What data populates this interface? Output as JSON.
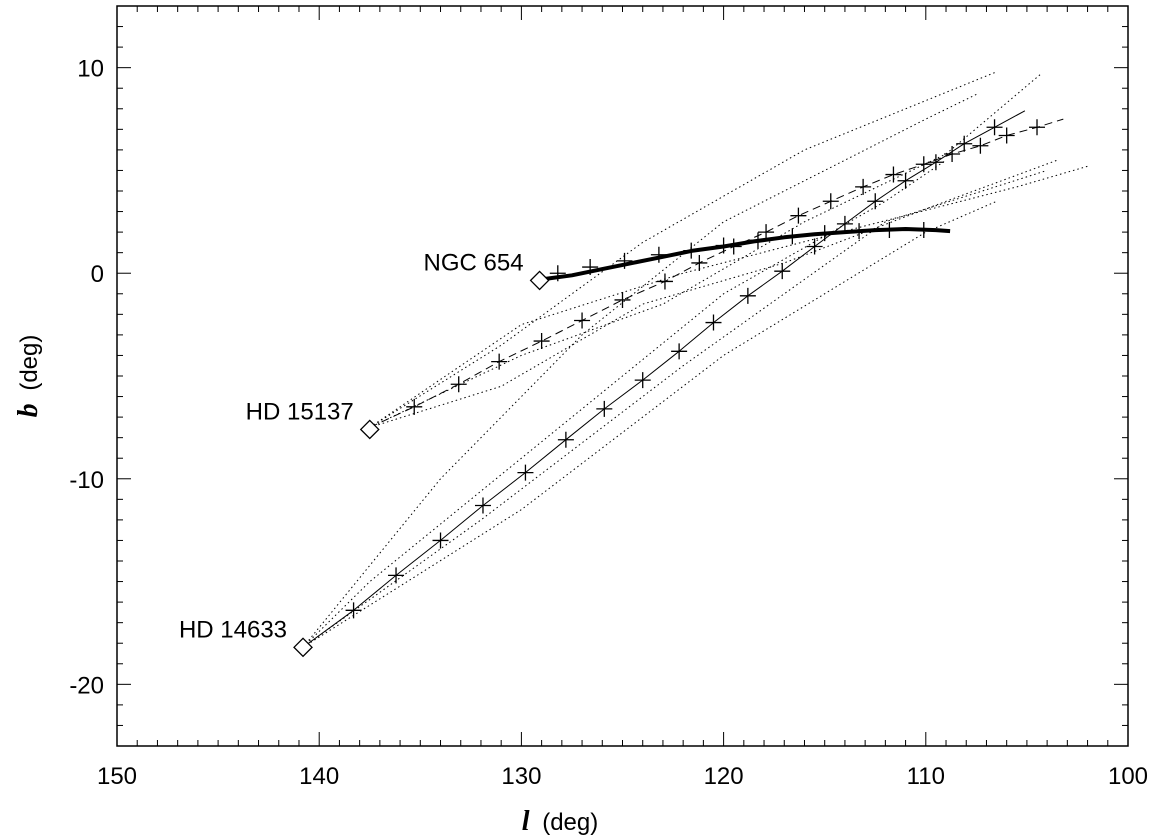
{
  "chart_data": {
    "type": "line",
    "xlabel": {
      "symbol": "l",
      "unit": "(deg)"
    },
    "ylabel": {
      "symbol": "b",
      "unit": "(deg)"
    },
    "xlim": [
      150,
      100
    ],
    "ylim": [
      -23,
      13
    ],
    "x_ticks": [
      150,
      140,
      130,
      120,
      110,
      100
    ],
    "y_ticks": [
      10,
      0,
      -10,
      -20
    ],
    "x_tick_labels": [
      "150",
      "140",
      "130",
      "120",
      "110",
      "100"
    ],
    "y_tick_labels": [
      "10",
      "0",
      "-10",
      "-20"
    ],
    "grid": false,
    "objects": [
      {
        "label": "NGC 654",
        "l": 129.1,
        "b": -0.35
      },
      {
        "label": "HD 15137",
        "l": 137.5,
        "b": -7.6
      },
      {
        "label": "HD 14633",
        "l": 140.8,
        "b": -18.2
      }
    ],
    "series": [
      {
        "style": "thick-solid",
        "points": [
          [
            129.0,
            -0.3
          ],
          [
            127.5,
            -0.1
          ],
          [
            126.0,
            0.2
          ],
          [
            124.5,
            0.5
          ],
          [
            123.0,
            0.8
          ],
          [
            121.5,
            1.1
          ],
          [
            120.0,
            1.3
          ],
          [
            118.5,
            1.55
          ],
          [
            117.0,
            1.75
          ],
          [
            115.5,
            1.9
          ],
          [
            114.0,
            2.0
          ],
          [
            112.5,
            2.1
          ],
          [
            111.0,
            2.15
          ],
          [
            109.5,
            2.1
          ],
          [
            108.8,
            2.05
          ]
        ],
        "markers": [
          [
            128.2,
            0.0
          ],
          [
            126.6,
            0.3
          ],
          [
            124.9,
            0.6
          ],
          [
            123.2,
            0.9
          ],
          [
            121.6,
            1.1
          ],
          [
            120.0,
            1.35
          ],
          [
            118.3,
            1.6
          ],
          [
            116.6,
            1.8
          ],
          [
            115.0,
            1.95
          ],
          [
            113.3,
            2.05
          ],
          [
            111.8,
            2.1
          ],
          [
            110.1,
            2.1
          ]
        ]
      },
      {
        "style": "dashed",
        "points": [
          [
            137.5,
            -7.5
          ],
          [
            135.3,
            -6.5
          ],
          [
            133.1,
            -5.4
          ],
          [
            131.1,
            -4.3
          ],
          [
            129.0,
            -3.3
          ],
          [
            127.0,
            -2.3
          ],
          [
            125.0,
            -1.3
          ],
          [
            122.9,
            -0.4
          ],
          [
            121.2,
            0.5
          ],
          [
            119.5,
            1.3
          ],
          [
            117.9,
            2.0
          ],
          [
            116.3,
            2.8
          ],
          [
            114.7,
            3.5
          ],
          [
            113.1,
            4.2
          ],
          [
            111.6,
            4.8
          ],
          [
            110.1,
            5.3
          ],
          [
            108.7,
            5.8
          ],
          [
            107.3,
            6.2
          ],
          [
            106.0,
            6.7
          ],
          [
            104.5,
            7.1
          ],
          [
            103.2,
            7.5
          ]
        ],
        "markers": [
          [
            135.3,
            -6.5
          ],
          [
            133.1,
            -5.4
          ],
          [
            131.1,
            -4.3
          ],
          [
            129.0,
            -3.3
          ],
          [
            127.0,
            -2.3
          ],
          [
            125.0,
            -1.3
          ],
          [
            122.9,
            -0.4
          ],
          [
            121.2,
            0.5
          ],
          [
            119.5,
            1.3
          ],
          [
            117.9,
            2.0
          ],
          [
            116.3,
            2.8
          ],
          [
            114.7,
            3.5
          ],
          [
            113.1,
            4.2
          ],
          [
            111.6,
            4.8
          ],
          [
            110.1,
            5.3
          ],
          [
            108.7,
            5.8
          ],
          [
            107.3,
            6.2
          ],
          [
            106.0,
            6.7
          ],
          [
            104.5,
            7.1
          ]
        ]
      },
      {
        "style": "thin-solid",
        "points": [
          [
            140.8,
            -18.2
          ],
          [
            138.3,
            -16.4
          ],
          [
            136.2,
            -14.7
          ],
          [
            134.0,
            -13.0
          ],
          [
            131.9,
            -11.3
          ],
          [
            129.8,
            -9.7
          ],
          [
            127.8,
            -8.1
          ],
          [
            125.9,
            -6.6
          ],
          [
            124.0,
            -5.2
          ],
          [
            122.2,
            -3.8
          ],
          [
            120.5,
            -2.4
          ],
          [
            118.8,
            -1.1
          ],
          [
            117.1,
            0.1
          ],
          [
            115.5,
            1.3
          ],
          [
            114.0,
            2.4
          ],
          [
            112.5,
            3.5
          ],
          [
            111.0,
            4.5
          ],
          [
            109.5,
            5.4
          ],
          [
            108.1,
            6.3
          ],
          [
            106.6,
            7.1
          ],
          [
            105.1,
            7.9
          ]
        ],
        "markers": [
          [
            138.3,
            -16.4
          ],
          [
            136.2,
            -14.7
          ],
          [
            134.0,
            -13.0
          ],
          [
            131.9,
            -11.3
          ],
          [
            129.8,
            -9.7
          ],
          [
            127.8,
            -8.1
          ],
          [
            125.9,
            -6.6
          ],
          [
            124.0,
            -5.2
          ],
          [
            122.2,
            -3.8
          ],
          [
            120.5,
            -2.4
          ],
          [
            118.8,
            -1.1
          ],
          [
            117.1,
            0.1
          ],
          [
            115.5,
            1.3
          ],
          [
            114.0,
            2.4
          ],
          [
            112.5,
            3.5
          ],
          [
            111.0,
            4.5
          ],
          [
            109.5,
            5.4
          ],
          [
            108.1,
            6.3
          ],
          [
            106.6,
            7.1
          ]
        ]
      },
      {
        "style": "dotted",
        "points": [
          [
            137.5,
            -7.5
          ],
          [
            131.0,
            -3.5
          ],
          [
            124.0,
            1.5
          ],
          [
            116.0,
            6.0
          ],
          [
            106.5,
            9.8
          ]
        ]
      },
      {
        "style": "dotted",
        "points": [
          [
            137.5,
            -7.5
          ],
          [
            130.0,
            -4.0
          ],
          [
            123.0,
            -1.5
          ],
          [
            116.0,
            2.5
          ],
          [
            109.0,
            5.8
          ],
          [
            104.3,
            9.7
          ]
        ]
      },
      {
        "style": "dotted",
        "points": [
          [
            137.5,
            -7.5
          ],
          [
            130.0,
            -2.5
          ],
          [
            122.0,
            0.0
          ],
          [
            113.0,
            2.3
          ],
          [
            105.5,
            4.2
          ],
          [
            102.0,
            5.2
          ]
        ]
      },
      {
        "style": "dotted",
        "points": [
          [
            137.5,
            -7.5
          ],
          [
            131.0,
            -5.5
          ],
          [
            124.0,
            -1.5
          ],
          [
            117.0,
            0.5
          ],
          [
            109.0,
            3.5
          ],
          [
            103.5,
            5.5
          ]
        ]
      },
      {
        "style": "dotted",
        "points": [
          [
            140.8,
            -18.2
          ],
          [
            134.0,
            -10.0
          ],
          [
            127.0,
            -3.0
          ],
          [
            120.0,
            2.5
          ],
          [
            110.0,
            7.5
          ],
          [
            107.5,
            8.7
          ]
        ]
      },
      {
        "style": "dotted",
        "points": [
          [
            140.8,
            -18.2
          ],
          [
            130.0,
            -11.5
          ],
          [
            120.0,
            -4.0
          ],
          [
            110.0,
            2.0
          ],
          [
            106.5,
            3.5
          ]
        ]
      },
      {
        "style": "dotted",
        "points": [
          [
            140.8,
            -18.2
          ],
          [
            137.5,
            -15.0
          ],
          [
            130.0,
            -9.0
          ],
          [
            120.0,
            -1.0
          ],
          [
            112.0,
            3.5
          ],
          [
            109.0,
            5.5
          ]
        ]
      },
      {
        "style": "dotted",
        "points": [
          [
            140.8,
            -18.2
          ],
          [
            132.0,
            -12.0
          ],
          [
            122.0,
            -4.5
          ],
          [
            112.0,
            2.5
          ],
          [
            104.0,
            5.0
          ]
        ]
      }
    ]
  }
}
